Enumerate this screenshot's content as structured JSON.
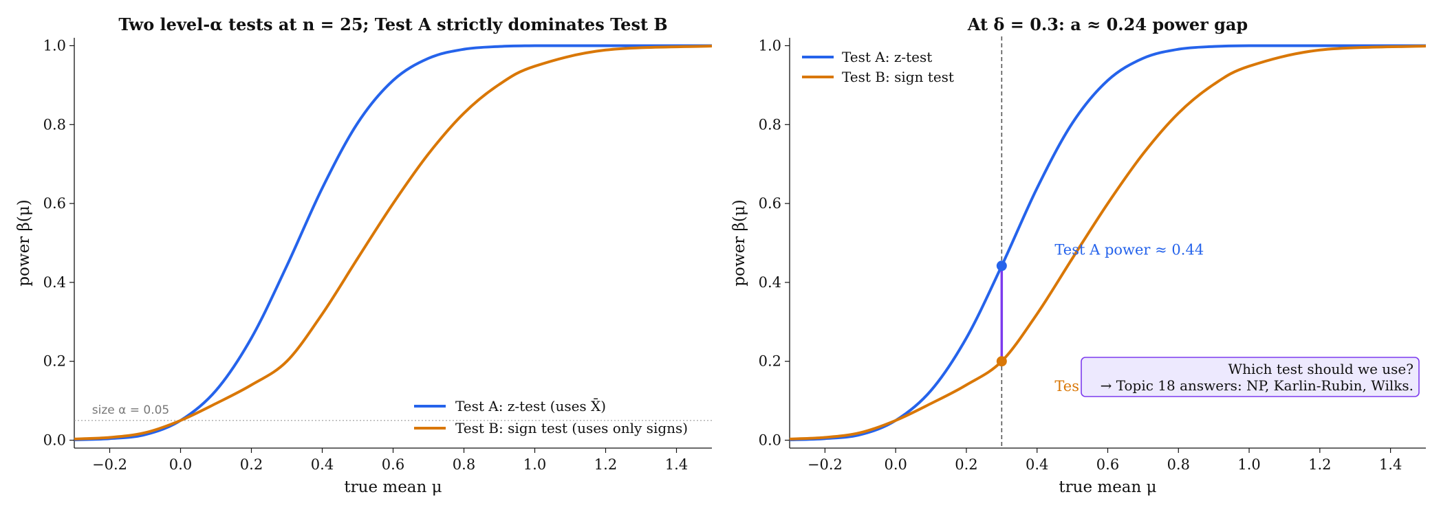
{
  "colors": {
    "test_a": "#2563eb",
    "test_b": "#d97706",
    "gap": "#7c3aed",
    "box_fill": "#ede9fe",
    "box_edge": "#7c3aed",
    "size_line": "#9a9a9a",
    "vline": "#555555"
  },
  "chart_data": [
    {
      "type": "line",
      "title": "Two level-α tests at n = 25; Test A strictly dominates Test B",
      "xlabel": "true mean μ",
      "ylabel": "power β(μ)",
      "xlim": [
        -0.3,
        1.5
      ],
      "ylim": [
        -0.02,
        1.02
      ],
      "x_ticks": [
        -0.2,
        0.0,
        0.2,
        0.4,
        0.6,
        0.8,
        1.0,
        1.2,
        1.4
      ],
      "x_tick_labels": [
        "−0.2",
        "0.0",
        "0.2",
        "0.4",
        "0.6",
        "0.8",
        "1.0",
        "1.2",
        "1.4"
      ],
      "y_ticks": [
        0.0,
        0.2,
        0.4,
        0.6,
        0.8,
        1.0
      ],
      "y_tick_labels": [
        "0.0",
        "0.2",
        "0.4",
        "0.6",
        "0.8",
        "1.0"
      ],
      "grid": false,
      "legend_position": "lower-right",
      "series": [
        {
          "name": "Test A: z-test (uses X̄)",
          "color": "#2563eb",
          "x": [
            -0.3,
            -0.2,
            -0.1,
            0.0,
            0.1,
            0.2,
            0.3,
            0.4,
            0.5,
            0.6,
            0.7,
            0.8,
            0.9,
            1.0,
            1.2,
            1.5
          ],
          "y": [
            0.001,
            0.004,
            0.014,
            0.05,
            0.126,
            0.259,
            0.442,
            0.639,
            0.804,
            0.912,
            0.968,
            0.991,
            0.998,
            1.0,
            1.0,
            1.0
          ]
        },
        {
          "name": "Test B: sign test (uses only signs)",
          "color": "#d97706",
          "x": [
            -0.3,
            -0.2,
            -0.1,
            0.0,
            0.1,
            0.2,
            0.3,
            0.4,
            0.5,
            0.6,
            0.7,
            0.8,
            0.9,
            1.0,
            1.2,
            1.5
          ],
          "y": [
            0.003,
            0.007,
            0.019,
            0.05,
            0.093,
            0.14,
            0.2,
            0.32,
            0.461,
            0.6,
            0.726,
            0.829,
            0.902,
            0.948,
            0.989,
            0.999
          ]
        }
      ],
      "size_line": {
        "y": 0.05,
        "label": "size α = 0.05"
      }
    },
    {
      "type": "line",
      "title": "At δ = 0.3: a  ≈ 0.24 power gap",
      "xlabel": "true mean μ",
      "ylabel": "power β(μ)",
      "xlim": [
        -0.3,
        1.5
      ],
      "ylim": [
        -0.02,
        1.02
      ],
      "x_ticks": [
        -0.2,
        0.0,
        0.2,
        0.4,
        0.6,
        0.8,
        1.0,
        1.2,
        1.4
      ],
      "x_tick_labels": [
        "−0.2",
        "0.0",
        "0.2",
        "0.4",
        "0.6",
        "0.8",
        "1.0",
        "1.2",
        "1.4"
      ],
      "y_ticks": [
        0.0,
        0.2,
        0.4,
        0.6,
        0.8,
        1.0
      ],
      "y_tick_labels": [
        "0.0",
        "0.2",
        "0.4",
        "0.6",
        "0.8",
        "1.0"
      ],
      "grid": false,
      "legend_position": "upper-left",
      "series": [
        {
          "name": "Test A: z-test",
          "color": "#2563eb",
          "x": [
            -0.3,
            -0.2,
            -0.1,
            0.0,
            0.1,
            0.2,
            0.3,
            0.4,
            0.5,
            0.6,
            0.7,
            0.8,
            0.9,
            1.0,
            1.2,
            1.5
          ],
          "y": [
            0.001,
            0.004,
            0.014,
            0.05,
            0.126,
            0.259,
            0.442,
            0.639,
            0.804,
            0.912,
            0.968,
            0.991,
            0.998,
            1.0,
            1.0,
            1.0
          ]
        },
        {
          "name": "Test B: sign test",
          "color": "#d97706",
          "x": [
            -0.3,
            -0.2,
            -0.1,
            0.0,
            0.1,
            0.2,
            0.3,
            0.4,
            0.5,
            0.6,
            0.7,
            0.8,
            0.9,
            1.0,
            1.2,
            1.5
          ],
          "y": [
            0.003,
            0.007,
            0.019,
            0.05,
            0.093,
            0.14,
            0.2,
            0.32,
            0.461,
            0.6,
            0.726,
            0.829,
            0.902,
            0.948,
            0.989,
            0.999
          ]
        }
      ],
      "vline_x": 0.3,
      "points": [
        {
          "x": 0.3,
          "y": 0.442,
          "series": 0
        },
        {
          "x": 0.3,
          "y": 0.2,
          "series": 1
        }
      ],
      "annotations": {
        "test_a_power": {
          "text": "Test A power ≈ 0.44",
          "x": 0.45,
          "y": 0.47
        },
        "test_b_partial": {
          "text": "Tes",
          "x": 0.45,
          "y": 0.125
        }
      },
      "callout": {
        "line1": "Which test should we use?",
        "line2": "→ Topic 18 answers: NP, Karlin-Rubin, Wilks."
      }
    }
  ]
}
